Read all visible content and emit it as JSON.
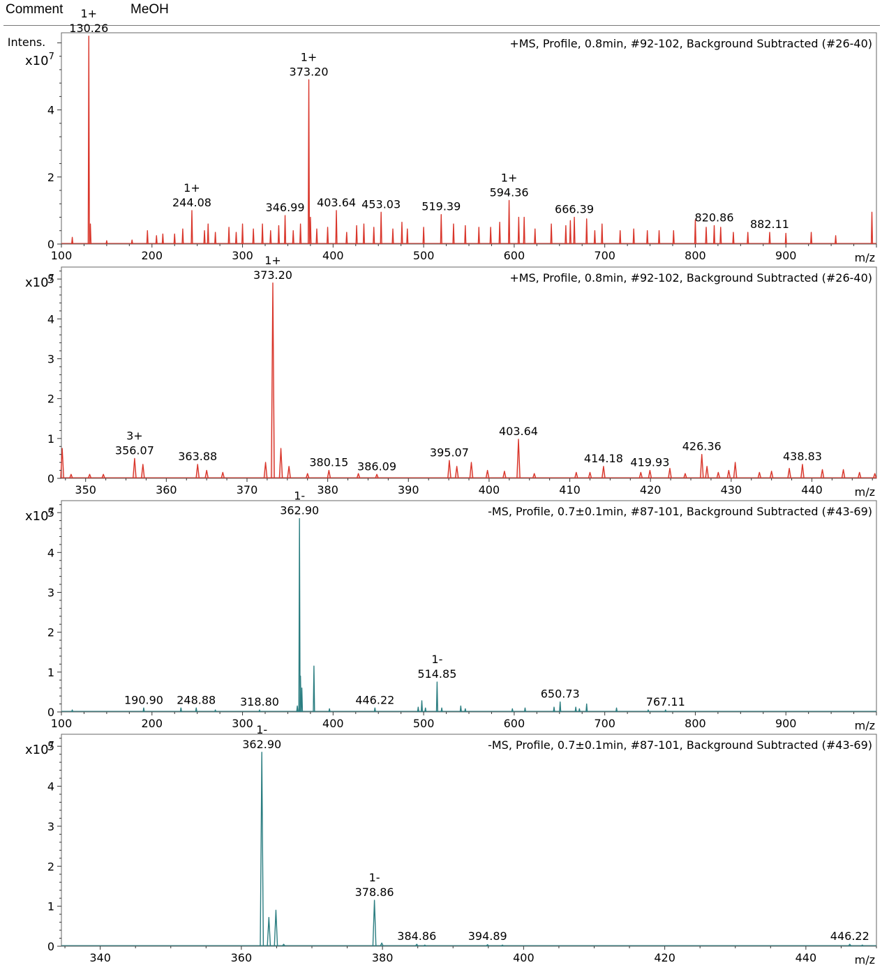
{
  "header": {
    "comment_label": "Comment",
    "comment_value": "MeOH"
  },
  "chart_data": [
    {
      "type": "line",
      "title": "+MS, Profile, 0.8min, #92-102, Background Subtracted (#26-40)",
      "ylabel": "Intens.",
      "yscale": "x10",
      "yexp": "7",
      "xlabel": "m/z",
      "color": "#d9362b",
      "fill": false,
      "xlim": [
        100,
        1000
      ],
      "ylim": [
        0,
        6.3
      ],
      "xticks": [
        100,
        200,
        300,
        400,
        500,
        600,
        700,
        800,
        900
      ],
      "xtick_labels": [
        "100",
        "200",
        "300",
        "400",
        "500",
        "600",
        "700",
        "800",
        "900"
      ],
      "yticks": [
        0,
        2,
        4
      ],
      "ytick_labels": [
        "0",
        "2",
        "4"
      ],
      "peaks": [
        [
          112,
          0.2
        ],
        [
          130.26,
          6.2
        ],
        [
          132,
          0.6
        ],
        [
          150,
          0.1
        ],
        [
          178,
          0.12
        ],
        [
          195,
          0.4
        ],
        [
          205,
          0.25
        ],
        [
          212,
          0.3
        ],
        [
          225,
          0.3
        ],
        [
          234,
          0.45
        ],
        [
          244.08,
          1.0
        ],
        [
          258,
          0.4
        ],
        [
          262,
          0.6
        ],
        [
          270,
          0.35
        ],
        [
          285,
          0.5
        ],
        [
          293,
          0.35
        ],
        [
          300,
          0.6
        ],
        [
          312,
          0.45
        ],
        [
          322,
          0.6
        ],
        [
          331,
          0.4
        ],
        [
          340,
          0.55
        ],
        [
          346.99,
          0.85
        ],
        [
          356,
          0.4
        ],
        [
          364,
          0.6
        ],
        [
          373.2,
          4.9
        ],
        [
          375,
          0.8
        ],
        [
          382,
          0.45
        ],
        [
          394,
          0.5
        ],
        [
          403.64,
          1.0
        ],
        [
          415,
          0.35
        ],
        [
          426,
          0.55
        ],
        [
          434,
          0.6
        ],
        [
          445,
          0.5
        ],
        [
          453.03,
          0.95
        ],
        [
          466,
          0.45
        ],
        [
          476,
          0.65
        ],
        [
          482,
          0.45
        ],
        [
          500,
          0.5
        ],
        [
          519.39,
          0.88
        ],
        [
          533,
          0.6
        ],
        [
          546,
          0.55
        ],
        [
          561,
          0.5
        ],
        [
          574,
          0.5
        ],
        [
          584,
          0.65
        ],
        [
          594.36,
          1.3
        ],
        [
          605,
          0.8
        ],
        [
          611,
          0.8
        ],
        [
          623,
          0.45
        ],
        [
          641,
          0.6
        ],
        [
          657,
          0.55
        ],
        [
          662,
          0.7
        ],
        [
          666.39,
          0.8
        ],
        [
          680,
          0.75
        ],
        [
          689,
          0.4
        ],
        [
          697,
          0.6
        ],
        [
          717,
          0.4
        ],
        [
          732,
          0.45
        ],
        [
          747,
          0.4
        ],
        [
          760,
          0.4
        ],
        [
          776,
          0.4
        ],
        [
          800,
          0.72
        ],
        [
          812,
          0.5
        ],
        [
          820.86,
          0.55
        ],
        [
          828,
          0.5
        ],
        [
          842,
          0.35
        ],
        [
          858,
          0.35
        ],
        [
          882.11,
          0.35
        ],
        [
          900,
          0.32
        ],
        [
          928,
          0.35
        ],
        [
          955,
          0.25
        ],
        [
          995,
          0.95
        ]
      ],
      "annotations": [
        {
          "x": 130.26,
          "y": 6.2,
          "label": "130.26",
          "charge": "1+"
        },
        {
          "x": 244.08,
          "y": 1.0,
          "label": "244.08",
          "charge": "1+"
        },
        {
          "x": 346.99,
          "y": 0.85,
          "label": "346.99",
          "charge": ""
        },
        {
          "x": 373.2,
          "y": 4.9,
          "label": "373.20",
          "charge": "1+"
        },
        {
          "x": 403.64,
          "y": 1.0,
          "label": "403.64",
          "charge": ""
        },
        {
          "x": 453.03,
          "y": 0.95,
          "label": "453.03",
          "charge": ""
        },
        {
          "x": 519.39,
          "y": 0.88,
          "label": "519.39",
          "charge": ""
        },
        {
          "x": 594.36,
          "y": 1.3,
          "label": "594.36",
          "charge": "1+"
        },
        {
          "x": 666.39,
          "y": 0.8,
          "label": "666.39",
          "charge": ""
        },
        {
          "x": 820.86,
          "y": 0.55,
          "label": "820.86",
          "charge": ""
        },
        {
          "x": 882.11,
          "y": 0.35,
          "label": "882.11",
          "charge": ""
        }
      ]
    },
    {
      "type": "line",
      "title": "+MS, Profile, 0.8min, #92-102, Background Subtracted (#26-40)",
      "ylabel": "",
      "yscale": "x10",
      "yexp": "7",
      "xlabel": "m/z",
      "color": "#d9362b",
      "fill": true,
      "xlim": [
        347,
        448
      ],
      "ylim": [
        0,
        5.3
      ],
      "xticks": [
        350,
        360,
        370,
        380,
        390,
        400,
        410,
        420,
        430,
        440
      ],
      "xtick_labels": [
        "350",
        "360",
        "370",
        "380",
        "390",
        "400",
        "410",
        "420",
        "430",
        "440"
      ],
      "yticks": [
        0,
        1,
        2,
        3,
        4,
        5
      ],
      "ytick_labels": [
        "0",
        "1",
        "2",
        "3",
        "4",
        "5"
      ],
      "peaks": [
        [
          347.1,
          0.75
        ],
        [
          348.2,
          0.1
        ],
        [
          350.5,
          0.1
        ],
        [
          352.2,
          0.1
        ],
        [
          356.07,
          0.5
        ],
        [
          357.1,
          0.35
        ],
        [
          363.88,
          0.35
        ],
        [
          365,
          0.2
        ],
        [
          367,
          0.15
        ],
        [
          372.3,
          0.4
        ],
        [
          373.2,
          4.9
        ],
        [
          374.2,
          0.75
        ],
        [
          375.2,
          0.3
        ],
        [
          377.5,
          0.12
        ],
        [
          380.15,
          0.2
        ],
        [
          383.8,
          0.12
        ],
        [
          386.09,
          0.1
        ],
        [
          395.07,
          0.45
        ],
        [
          396,
          0.3
        ],
        [
          397.8,
          0.4
        ],
        [
          399.8,
          0.2
        ],
        [
          401.9,
          0.18
        ],
        [
          403.64,
          0.98
        ],
        [
          405.6,
          0.12
        ],
        [
          410.8,
          0.15
        ],
        [
          412.5,
          0.15
        ],
        [
          414.18,
          0.3
        ],
        [
          418.8,
          0.15
        ],
        [
          419.93,
          0.2
        ],
        [
          422.4,
          0.25
        ],
        [
          424.3,
          0.12
        ],
        [
          426.36,
          0.6
        ],
        [
          427,
          0.3
        ],
        [
          428.4,
          0.15
        ],
        [
          429.7,
          0.2
        ],
        [
          430.5,
          0.4
        ],
        [
          433.5,
          0.15
        ],
        [
          435,
          0.18
        ],
        [
          437.2,
          0.25
        ],
        [
          438.83,
          0.35
        ],
        [
          441.3,
          0.22
        ],
        [
          443.9,
          0.22
        ],
        [
          445.9,
          0.15
        ],
        [
          447.8,
          0.12
        ]
      ],
      "annotations": [
        {
          "x": 356.07,
          "y": 0.5,
          "label": "356.07",
          "charge": "3+"
        },
        {
          "x": 363.88,
          "y": 0.35,
          "label": "363.88",
          "charge": ""
        },
        {
          "x": 373.2,
          "y": 4.9,
          "label": "373.20",
          "charge": "1+"
        },
        {
          "x": 380.15,
          "y": 0.2,
          "label": "380.15",
          "charge": ""
        },
        {
          "x": 386.09,
          "y": 0.1,
          "label": "386.09",
          "charge": ""
        },
        {
          "x": 395.07,
          "y": 0.45,
          "label": "395.07",
          "charge": ""
        },
        {
          "x": 403.64,
          "y": 0.98,
          "label": "403.64",
          "charge": ""
        },
        {
          "x": 414.18,
          "y": 0.3,
          "label": "414.18",
          "charge": ""
        },
        {
          "x": 419.93,
          "y": 0.2,
          "label": "419.93",
          "charge": ""
        },
        {
          "x": 426.36,
          "y": 0.6,
          "label": "426.36",
          "charge": ""
        },
        {
          "x": 438.83,
          "y": 0.35,
          "label": "438.83",
          "charge": ""
        }
      ]
    },
    {
      "type": "line",
      "title": "-MS, Profile, 0.7±0.1min, #87-101, Background Subtracted (#43-69)",
      "ylabel": "",
      "yscale": "x10",
      "yexp": "7",
      "xlabel": "m/z",
      "color": "#2a7d80",
      "fill": false,
      "xlim": [
        100,
        1000
      ],
      "ylim": [
        0,
        5.3
      ],
      "xticks": [
        100,
        200,
        300,
        400,
        500,
        600,
        700,
        800,
        900
      ],
      "xtick_labels": [
        "100",
        "200",
        "300",
        "400",
        "500",
        "600",
        "700",
        "800",
        "900"
      ],
      "yticks": [
        0,
        1,
        2,
        3,
        4,
        5
      ],
      "ytick_labels": [
        "0",
        "1",
        "2",
        "3",
        "4",
        "5"
      ],
      "peaks": [
        [
          112,
          0.05
        ],
        [
          190.9,
          0.1
        ],
        [
          232,
          0.1
        ],
        [
          248.88,
          0.1
        ],
        [
          270,
          0.05
        ],
        [
          318.8,
          0.05
        ],
        [
          360.5,
          0.15
        ],
        [
          362.9,
          4.85
        ],
        [
          364,
          0.9
        ],
        [
          365.5,
          0.6
        ],
        [
          378.86,
          1.15
        ],
        [
          396,
          0.08
        ],
        [
          446.22,
          0.1
        ],
        [
          494,
          0.12
        ],
        [
          498,
          0.28
        ],
        [
          502,
          0.1
        ],
        [
          514.85,
          0.75
        ],
        [
          520,
          0.1
        ],
        [
          541,
          0.15
        ],
        [
          546,
          0.08
        ],
        [
          598,
          0.08
        ],
        [
          612,
          0.1
        ],
        [
          644,
          0.12
        ],
        [
          650.73,
          0.25
        ],
        [
          668,
          0.12
        ],
        [
          672,
          0.08
        ],
        [
          680,
          0.2
        ],
        [
          713,
          0.1
        ],
        [
          748,
          0.05
        ],
        [
          767.11,
          0.05
        ]
      ],
      "annotations": [
        {
          "x": 190.9,
          "y": 0.1,
          "label": "190.90",
          "charge": ""
        },
        {
          "x": 248.88,
          "y": 0.1,
          "label": "248.88",
          "charge": ""
        },
        {
          "x": 318.8,
          "y": 0.05,
          "label": "318.80",
          "charge": ""
        },
        {
          "x": 362.9,
          "y": 4.85,
          "label": "362.90",
          "charge": "1-"
        },
        {
          "x": 446.22,
          "y": 0.1,
          "label": "446.22",
          "charge": ""
        },
        {
          "x": 514.85,
          "y": 0.75,
          "label": "514.85",
          "charge": "1-"
        },
        {
          "x": 650.73,
          "y": 0.25,
          "label": "650.73",
          "charge": ""
        },
        {
          "x": 767.11,
          "y": 0.05,
          "label": "767.11",
          "charge": ""
        }
      ]
    },
    {
      "type": "line",
      "title": "-MS, Profile, 0.7±0.1min, #87-101, Background Subtracted (#43-69)",
      "ylabel": "",
      "yscale": "x10",
      "yexp": "7",
      "xlabel": "m/z",
      "color": "#2a7d80",
      "fill": false,
      "xlim": [
        334.5,
        450
      ],
      "ylim": [
        0,
        5.3
      ],
      "xticks": [
        340,
        360,
        380,
        400,
        420,
        440
      ],
      "xtick_labels": [
        "340",
        "360",
        "380",
        "400",
        "420",
        "440"
      ],
      "yticks": [
        0,
        1,
        2,
        3,
        4,
        5
      ],
      "ytick_labels": [
        "0",
        "1",
        "2",
        "3",
        "4",
        "5"
      ],
      "peaks": [
        [
          362.9,
          4.85
        ],
        [
          363.9,
          0.72
        ],
        [
          364.9,
          0.9
        ],
        [
          366,
          0.05
        ],
        [
          378.86,
          1.15
        ],
        [
          379.9,
          0.08
        ],
        [
          384.86,
          0.05
        ],
        [
          386,
          0.03
        ],
        [
          394.89,
          0.04
        ],
        [
          397,
          0.03
        ],
        [
          446.22,
          0.05
        ],
        [
          448,
          0.03
        ]
      ],
      "annotations": [
        {
          "x": 362.9,
          "y": 4.85,
          "label": "362.90",
          "charge": "1-"
        },
        {
          "x": 378.86,
          "y": 1.15,
          "label": "378.86",
          "charge": "1-"
        },
        {
          "x": 384.86,
          "y": 0.05,
          "label": "384.86",
          "charge": ""
        },
        {
          "x": 394.89,
          "y": 0.05,
          "label": "394.89",
          "charge": ""
        },
        {
          "x": 446.22,
          "y": 0.05,
          "label": "446.22",
          "charge": ""
        }
      ]
    }
  ]
}
